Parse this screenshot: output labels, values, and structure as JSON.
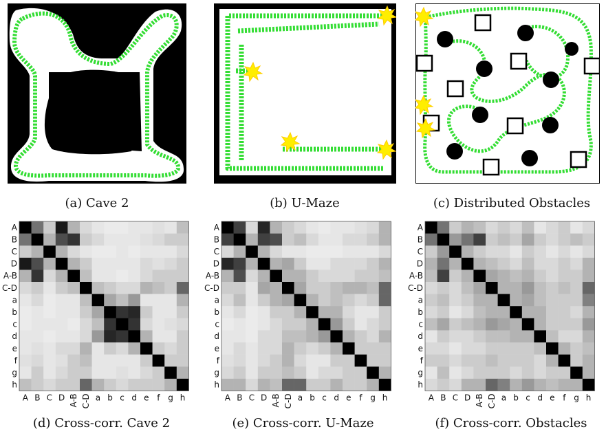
{
  "captions": {
    "a": "(a) Cave 2",
    "b": "(b) U-Maze",
    "c": "(c) Distributed Obstacles",
    "d": "(d) Cross-corr. Cave 2",
    "e": "(e) Cross-corr. U-Maze",
    "f": "(f) Cross-corr. Obstacles"
  },
  "colors": {
    "trajectory": "#33dd33",
    "marker": "#ffee00",
    "obstacle": "#000000",
    "free_space": "#ffffff"
  },
  "chart_data": [
    {
      "type": "heatmap",
      "id": "cave2",
      "title": "",
      "row_labels": [
        "A",
        "B",
        "C",
        "D",
        "A-B",
        "C-D",
        "a",
        "b",
        "c",
        "d",
        "e",
        "f",
        "g",
        "h"
      ],
      "col_labels": [
        "A",
        "B",
        "C",
        "D",
        "A-B",
        "C-D",
        "a",
        "b",
        "c",
        "d",
        "e",
        "f",
        "g",
        "h"
      ],
      "values": [
        [
          1,
          0.55,
          0.2,
          0.9,
          0.3,
          0.15,
          0.1,
          0.08,
          0.08,
          0.1,
          0.1,
          0.12,
          0.1,
          0.25
        ],
        [
          0.55,
          1,
          0.3,
          0.7,
          0.8,
          0.2,
          0.15,
          0.1,
          0.1,
          0.1,
          0.12,
          0.15,
          0.2,
          0.2
        ],
        [
          0.2,
          0.3,
          1,
          0.3,
          0.15,
          0.1,
          0.08,
          0.08,
          0.1,
          0.08,
          0.1,
          0.1,
          0.1,
          0.15
        ],
        [
          0.9,
          0.7,
          0.3,
          1,
          0.3,
          0.2,
          0.1,
          0.1,
          0.1,
          0.1,
          0.15,
          0.12,
          0.15,
          0.2
        ],
        [
          0.3,
          0.8,
          0.15,
          0.3,
          1,
          0.25,
          0.1,
          0.1,
          0.08,
          0.1,
          0.15,
          0.2,
          0.2,
          0.2
        ],
        [
          0.15,
          0.2,
          0.1,
          0.2,
          0.25,
          1,
          0.25,
          0.2,
          0.15,
          0.15,
          0.3,
          0.25,
          0.2,
          0.6
        ],
        [
          0.1,
          0.15,
          0.08,
          0.1,
          0.1,
          0.25,
          1,
          0.35,
          0.25,
          0.4,
          0.1,
          0.1,
          0.1,
          0.3
        ],
        [
          0.08,
          0.1,
          0.08,
          0.1,
          0.1,
          0.2,
          0.35,
          1,
          0.8,
          0.85,
          0.2,
          0.1,
          0.1,
          0.2
        ],
        [
          0.08,
          0.1,
          0.1,
          0.1,
          0.08,
          0.15,
          0.25,
          0.8,
          1,
          0.8,
          0.15,
          0.1,
          0.12,
          0.15
        ],
        [
          0.1,
          0.1,
          0.08,
          0.1,
          0.1,
          0.15,
          0.4,
          0.85,
          0.8,
          1,
          0.3,
          0.1,
          0.1,
          0.2
        ],
        [
          0.1,
          0.12,
          0.1,
          0.15,
          0.15,
          0.3,
          0.1,
          0.2,
          0.15,
          0.3,
          1,
          0.2,
          0.15,
          0.2
        ],
        [
          0.12,
          0.15,
          0.1,
          0.12,
          0.2,
          0.25,
          0.1,
          0.1,
          0.1,
          0.1,
          0.2,
          1,
          0.2,
          0.2
        ],
        [
          0.1,
          0.2,
          0.1,
          0.15,
          0.2,
          0.2,
          0.1,
          0.1,
          0.12,
          0.1,
          0.15,
          0.2,
          1,
          0.3
        ],
        [
          0.25,
          0.2,
          0.15,
          0.2,
          0.2,
          0.6,
          0.3,
          0.2,
          0.15,
          0.2,
          0.2,
          0.2,
          0.3,
          1
        ]
      ]
    },
    {
      "type": "heatmap",
      "id": "umaze",
      "title": "",
      "row_labels": [
        "A",
        "B",
        "C",
        "D",
        "A-B",
        "C-D",
        "a",
        "b",
        "c",
        "d",
        "e",
        "f",
        "g",
        "h"
      ],
      "col_labels": [
        "A",
        "B",
        "C",
        "D",
        "A-B",
        "C-D",
        "a",
        "b",
        "c",
        "d",
        "e",
        "f",
        "g",
        "h"
      ],
      "values": [
        [
          1,
          0.75,
          0.15,
          0.85,
          0.3,
          0.2,
          0.15,
          0.1,
          0.08,
          0.1,
          0.1,
          0.12,
          0.15,
          0.3
        ],
        [
          0.75,
          1,
          0.3,
          0.75,
          0.7,
          0.2,
          0.25,
          0.15,
          0.1,
          0.1,
          0.15,
          0.15,
          0.2,
          0.3
        ],
        [
          0.15,
          0.3,
          1,
          0.3,
          0.15,
          0.1,
          0.1,
          0.08,
          0.08,
          0.08,
          0.1,
          0.1,
          0.1,
          0.15
        ],
        [
          0.85,
          0.75,
          0.3,
          1,
          0.3,
          0.35,
          0.2,
          0.1,
          0.1,
          0.15,
          0.15,
          0.15,
          0.2,
          0.3
        ],
        [
          0.3,
          0.7,
          0.15,
          0.3,
          1,
          0.3,
          0.3,
          0.2,
          0.15,
          0.15,
          0.15,
          0.2,
          0.2,
          0.25
        ],
        [
          0.2,
          0.2,
          0.1,
          0.35,
          0.3,
          1,
          0.35,
          0.2,
          0.2,
          0.25,
          0.3,
          0.3,
          0.25,
          0.6
        ],
        [
          0.15,
          0.25,
          0.1,
          0.2,
          0.3,
          0.35,
          1,
          0.3,
          0.2,
          0.25,
          0.2,
          0.15,
          0.2,
          0.6
        ],
        [
          0.1,
          0.15,
          0.08,
          0.1,
          0.2,
          0.2,
          0.3,
          1,
          0.3,
          0.3,
          0.15,
          0.1,
          0.1,
          0.2
        ],
        [
          0.08,
          0.1,
          0.08,
          0.1,
          0.15,
          0.2,
          0.2,
          0.3,
          1,
          0.4,
          0.2,
          0.1,
          0.15,
          0.2
        ],
        [
          0.1,
          0.1,
          0.08,
          0.15,
          0.15,
          0.25,
          0.25,
          0.3,
          0.4,
          1,
          0.3,
          0.2,
          0.15,
          0.3
        ],
        [
          0.1,
          0.15,
          0.1,
          0.15,
          0.15,
          0.3,
          0.2,
          0.15,
          0.2,
          0.3,
          1,
          0.2,
          0.2,
          0.2
        ],
        [
          0.12,
          0.15,
          0.1,
          0.15,
          0.2,
          0.3,
          0.15,
          0.1,
          0.1,
          0.2,
          0.2,
          1,
          0.2,
          0.2
        ],
        [
          0.15,
          0.2,
          0.1,
          0.2,
          0.2,
          0.25,
          0.2,
          0.1,
          0.15,
          0.15,
          0.2,
          0.2,
          1,
          0.3
        ],
        [
          0.3,
          0.3,
          0.15,
          0.3,
          0.25,
          0.6,
          0.6,
          0.2,
          0.2,
          0.3,
          0.2,
          0.2,
          0.3,
          1
        ]
      ]
    },
    {
      "type": "heatmap",
      "id": "obstacles",
      "title": "",
      "row_labels": [
        "A",
        "B",
        "C",
        "D",
        "A-B",
        "C-D",
        "a",
        "b",
        "c",
        "d",
        "e",
        "f",
        "g",
        "h"
      ],
      "col_labels": [
        "A",
        "B",
        "C",
        "D",
        "A-B",
        "C-D",
        "a",
        "b",
        "c",
        "d",
        "e",
        "f",
        "g",
        "h"
      ],
      "values": [
        [
          1,
          0.55,
          0.2,
          0.3,
          0.25,
          0.15,
          0.2,
          0.15,
          0.25,
          0.1,
          0.15,
          0.2,
          0.1,
          0.15
        ],
        [
          0.55,
          1,
          0.4,
          0.55,
          0.75,
          0.2,
          0.25,
          0.2,
          0.35,
          0.2,
          0.15,
          0.2,
          0.25,
          0.2
        ],
        [
          0.2,
          0.4,
          1,
          0.3,
          0.2,
          0.15,
          0.15,
          0.1,
          0.2,
          0.15,
          0.1,
          0.15,
          0.1,
          0.15
        ],
        [
          0.3,
          0.55,
          0.3,
          1,
          0.3,
          0.25,
          0.2,
          0.15,
          0.25,
          0.15,
          0.15,
          0.2,
          0.15,
          0.3
        ],
        [
          0.25,
          0.75,
          0.2,
          0.3,
          1,
          0.35,
          0.3,
          0.25,
          0.3,
          0.2,
          0.15,
          0.2,
          0.2,
          0.3
        ],
        [
          0.15,
          0.2,
          0.15,
          0.25,
          0.35,
          1,
          0.3,
          0.3,
          0.4,
          0.25,
          0.2,
          0.25,
          0.2,
          0.6
        ],
        [
          0.2,
          0.25,
          0.15,
          0.2,
          0.3,
          0.3,
          1,
          0.3,
          0.35,
          0.25,
          0.2,
          0.2,
          0.2,
          0.5
        ],
        [
          0.15,
          0.2,
          0.1,
          0.15,
          0.25,
          0.3,
          0.3,
          1,
          0.3,
          0.3,
          0.2,
          0.2,
          0.15,
          0.3
        ],
        [
          0.25,
          0.35,
          0.2,
          0.25,
          0.3,
          0.4,
          0.35,
          0.3,
          1,
          0.3,
          0.2,
          0.2,
          0.2,
          0.4
        ],
        [
          0.1,
          0.2,
          0.15,
          0.15,
          0.2,
          0.25,
          0.25,
          0.3,
          0.3,
          1,
          0.25,
          0.15,
          0.15,
          0.3
        ],
        [
          0.15,
          0.15,
          0.1,
          0.15,
          0.15,
          0.2,
          0.2,
          0.2,
          0.2,
          0.25,
          1,
          0.3,
          0.2,
          0.25
        ],
        [
          0.2,
          0.2,
          0.15,
          0.2,
          0.2,
          0.25,
          0.2,
          0.2,
          0.2,
          0.15,
          0.3,
          1,
          0.2,
          0.3
        ],
        [
          0.1,
          0.25,
          0.1,
          0.15,
          0.2,
          0.2,
          0.2,
          0.15,
          0.2,
          0.15,
          0.2,
          0.2,
          1,
          0.3
        ],
        [
          0.15,
          0.2,
          0.15,
          0.3,
          0.3,
          0.6,
          0.5,
          0.3,
          0.4,
          0.3,
          0.25,
          0.3,
          0.3,
          1
        ]
      ]
    }
  ]
}
